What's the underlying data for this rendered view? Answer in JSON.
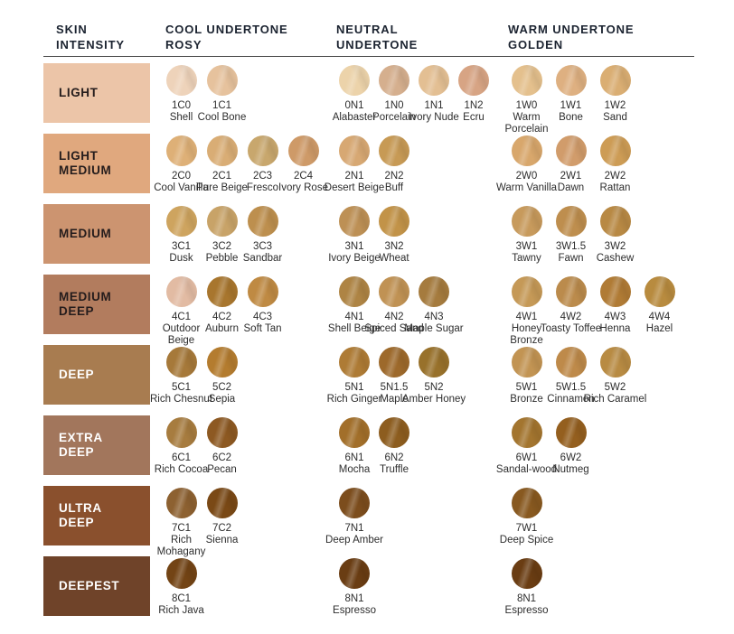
{
  "header": {
    "columns": [
      {
        "line1": "SKIN",
        "line2": "INTENSITY"
      },
      {
        "line1": "COOL UNDERTONE",
        "line2": "ROSY"
      },
      {
        "line1": "NEUTRAL",
        "line2": "UNDERTONE"
      },
      {
        "line1": "WARM UNDERTONE",
        "line2": "GOLDEN"
      }
    ]
  },
  "colors": {
    "header_text": "#1b2330",
    "divider": "#4a4a4a",
    "label_dark": "#241c1c",
    "label_light": "#ffffff",
    "shade_text": "#2d2d2d"
  },
  "rows": [
    {
      "intensity": "LIGHT",
      "swatch_color": "#ecc5a8",
      "label_style": "dark",
      "cool": [
        {
          "code": "1C0",
          "name": "Shell",
          "color": "#eed3ba"
        },
        {
          "code": "1C1",
          "name": "Cool Bone",
          "color": "#e6c29d"
        }
      ],
      "neutral": [
        {
          "code": "0N1",
          "name": "Alabaster",
          "color": "#ecd3aa"
        },
        {
          "code": "1N0",
          "name": "Porcelain",
          "color": "#d5af8e"
        },
        {
          "code": "1N1",
          "name": "Ivory Nude",
          "color": "#e3bf93"
        },
        {
          "code": "1N2",
          "name": "Ecru",
          "color": "#d7a484"
        }
      ],
      "warm": [
        {
          "code": "1W0",
          "name": "Warm Porcelain",
          "color": "#e4c08d"
        },
        {
          "code": "1W1",
          "name": "Bone",
          "color": "#deb081"
        },
        {
          "code": "1W2",
          "name": "Sand",
          "color": "#daae73"
        }
      ]
    },
    {
      "intensity": "LIGHT MEDIUM",
      "swatch_color": "#e0a87e",
      "label_style": "dark",
      "cool": [
        {
          "code": "2C0",
          "name": "Cool Vanilla",
          "color": "#deb077"
        },
        {
          "code": "2C1",
          "name": "Pure Beige",
          "color": "#d9ad75"
        },
        {
          "code": "2C3",
          "name": "Fresco",
          "color": "#c8a76d"
        },
        {
          "code": "2C4",
          "name": "Ivory Rose",
          "color": "#ce9a68"
        }
      ],
      "neutral": [
        {
          "code": "2N1",
          "name": "Desert Beige",
          "color": "#d7a873"
        },
        {
          "code": "2N2",
          "name": "Buff",
          "color": "#c79a55"
        }
      ],
      "warm": [
        {
          "code": "2W0",
          "name": "Warm Vanilla",
          "color": "#d8a76c"
        },
        {
          "code": "2W1",
          "name": "Dawn",
          "color": "#d19c6b"
        },
        {
          "code": "2W2",
          "name": "Rattan",
          "color": "#cd9c55"
        }
      ]
    },
    {
      "intensity": "MEDIUM",
      "swatch_color": "#cc9470",
      "label_style": "dark",
      "cool": [
        {
          "code": "3C1",
          "name": "Dusk",
          "color": "#cea45f"
        },
        {
          "code": "3C2",
          "name": "Pebble",
          "color": "#c8a368"
        },
        {
          "code": "3C3",
          "name": "Sandbar",
          "color": "#bd8f4e"
        }
      ],
      "neutral": [
        {
          "code": "3N1",
          "name": "Ivory Beige",
          "color": "#bd9055"
        },
        {
          "code": "3N2",
          "name": "Wheat",
          "color": "#c29348"
        }
      ],
      "warm": [
        {
          "code": "3W1",
          "name": "Tawny",
          "color": "#c79a5c"
        },
        {
          "code": "3W1.5",
          "name": "Fawn",
          "color": "#be8e4e"
        },
        {
          "code": "3W2",
          "name": "Cashew",
          "color": "#b88944"
        }
      ]
    },
    {
      "intensity": "MEDIUM DEEP",
      "swatch_color": "#b27c5e",
      "label_style": "dark",
      "cool": [
        {
          "code": "4C1",
          "name": "Outdoor Beige",
          "color": "#e2bba3"
        },
        {
          "code": "4C2",
          "name": "Auburn",
          "color": "#a8762e"
        },
        {
          "code": "4C3",
          "name": "Soft Tan",
          "color": "#bf8a43"
        }
      ],
      "neutral": [
        {
          "code": "4N1",
          "name": "Shell Beige",
          "color": "#ae8444"
        },
        {
          "code": "4N2",
          "name": "Spiced Sand",
          "color": "#c09254"
        },
        {
          "code": "4N3",
          "name": "Maple Sugar",
          "color": "#a57b3e"
        }
      ],
      "warm": [
        {
          "code": "4W1",
          "name": "Honey Bronze",
          "color": "#c59957"
        },
        {
          "code": "4W2",
          "name": "Toasty Toffee",
          "color": "#bb8b4c"
        },
        {
          "code": "4W3",
          "name": "Henna",
          "color": "#b07b35"
        },
        {
          "code": "4W4",
          "name": "Hazel",
          "color": "#b88b3f"
        }
      ]
    },
    {
      "intensity": "DEEP",
      "swatch_color": "#a87c50",
      "label_style": "light",
      "cool": [
        {
          "code": "5C1",
          "name": "Rich Chesnut",
          "color": "#a6793a"
        },
        {
          "code": "5C2",
          "name": "Sepia",
          "color": "#b47c2f"
        }
      ],
      "neutral": [
        {
          "code": "5N1",
          "name": "Rich Ginger",
          "color": "#ae7b35"
        },
        {
          "code": "5N1.5",
          "name": "Maple",
          "color": "#9d692b"
        },
        {
          "code": "5N2",
          "name": "Amber Honey",
          "color": "#98712b"
        }
      ],
      "warm": [
        {
          "code": "5W1",
          "name": "Bronze",
          "color": "#c29453"
        },
        {
          "code": "5W1.5",
          "name": "Cinnamon",
          "color": "#be8a4a"
        },
        {
          "code": "5W2",
          "name": "Rich Caramel",
          "color": "#b88b43"
        }
      ]
    },
    {
      "intensity": "EXTRA DEEP",
      "swatch_color": "#a2765c",
      "label_style": "light",
      "cool": [
        {
          "code": "6C1",
          "name": "Rich Cocoa",
          "color": "#a77c3f"
        },
        {
          "code": "6C2",
          "name": "Pecan",
          "color": "#8d5922"
        }
      ],
      "neutral": [
        {
          "code": "6N1",
          "name": "Mocha",
          "color": "#a26f2a"
        },
        {
          "code": "6N2",
          "name": "Truffle",
          "color": "#8d5d1f"
        }
      ],
      "warm": [
        {
          "code": "6W1",
          "name": "Sandal-wood",
          "color": "#a3752f"
        },
        {
          "code": "6W2",
          "name": "Nutmeg",
          "color": "#945f1f"
        }
      ]
    },
    {
      "intensity": "ULTRA DEEP",
      "swatch_color": "#8a502d",
      "label_style": "light",
      "cool": [
        {
          "code": "7C1",
          "name": "Rich Mohagany",
          "color": "#8d6131"
        },
        {
          "code": "7C2",
          "name": "Sienna",
          "color": "#7a4916"
        }
      ],
      "neutral": [
        {
          "code": "7N1",
          "name": "Deep Amber",
          "color": "#7c4d1d"
        }
      ],
      "warm": [
        {
          "code": "7W1",
          "name": "Deep Spice",
          "color": "#885920"
        }
      ]
    },
    {
      "intensity": "DEEPEST",
      "swatch_color": "#6f4329",
      "label_style": "light",
      "cool": [
        {
          "code": "8C1",
          "name": "Rich Java",
          "color": "#734415"
        }
      ],
      "neutral": [
        {
          "code": "8N1",
          "name": "Espresso",
          "color": "#6a3d13"
        }
      ],
      "warm": [
        {
          "code": "8N1",
          "name": "Espresso",
          "color": "#6a3d13"
        }
      ]
    }
  ]
}
